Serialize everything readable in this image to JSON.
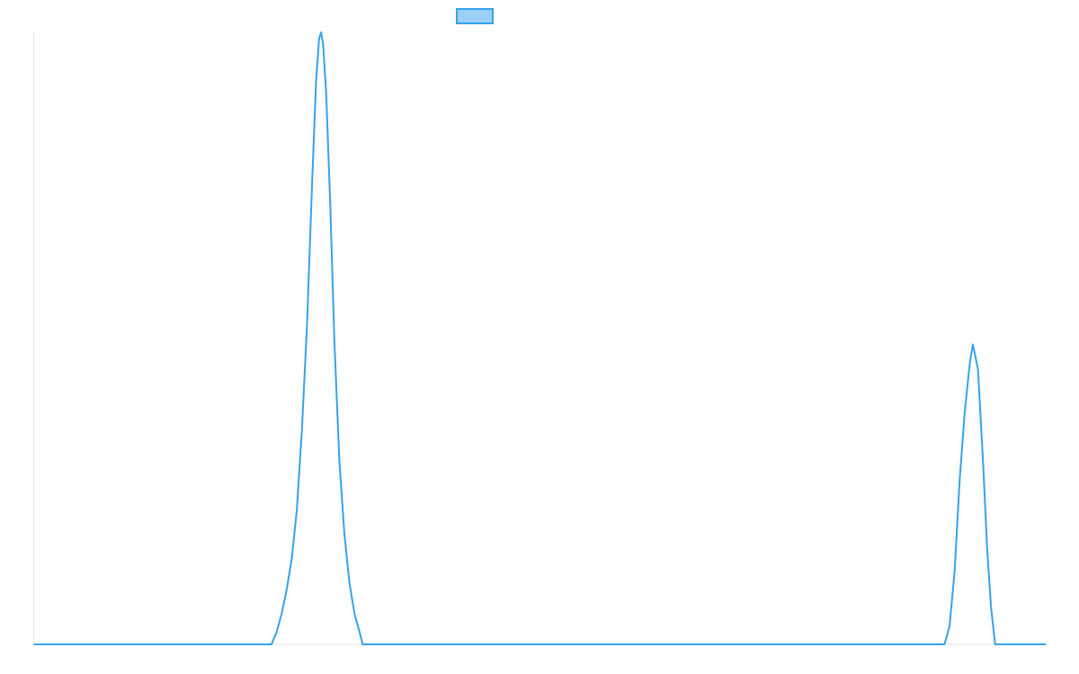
{
  "chart_data": {
    "type": "line",
    "title": "",
    "xlabel": "",
    "ylabel": "",
    "grid": false,
    "legend": "top-center",
    "xlim": [
      0,
      100
    ],
    "ylim": [
      0,
      100
    ],
    "series": [
      {
        "name": "",
        "color": "#36a2eb",
        "fill_color": "#9ad0f5",
        "points": [
          [
            0,
            0
          ],
          [
            23.5,
            0
          ],
          [
            24.0,
            2
          ],
          [
            24.5,
            5
          ],
          [
            25.0,
            9
          ],
          [
            25.5,
            14
          ],
          [
            26.0,
            22
          ],
          [
            26.5,
            35
          ],
          [
            27.0,
            52
          ],
          [
            27.5,
            75
          ],
          [
            27.9,
            92
          ],
          [
            28.2,
            99
          ],
          [
            28.4,
            100
          ],
          [
            28.6,
            98
          ],
          [
            28.9,
            90
          ],
          [
            29.3,
            72
          ],
          [
            29.7,
            50
          ],
          [
            30.2,
            30
          ],
          [
            30.7,
            18
          ],
          [
            31.2,
            10
          ],
          [
            31.7,
            5
          ],
          [
            32.2,
            2
          ],
          [
            32.5,
            0
          ],
          [
            90.0,
            0
          ],
          [
            90.5,
            3
          ],
          [
            91.0,
            12
          ],
          [
            91.5,
            27
          ],
          [
            92.0,
            38
          ],
          [
            92.5,
            46
          ],
          [
            92.8,
            49
          ],
          [
            93.3,
            45
          ],
          [
            93.8,
            30
          ],
          [
            94.2,
            16
          ],
          [
            94.6,
            6
          ],
          [
            95.0,
            0
          ],
          [
            100,
            0
          ]
        ]
      }
    ]
  }
}
